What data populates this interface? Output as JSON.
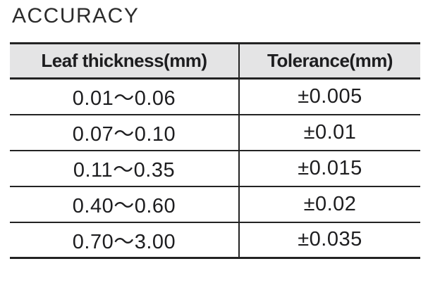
{
  "title": "ACCURACY",
  "table": {
    "headers": [
      "Leaf thickness(mm)",
      "Tolerance(mm)"
    ],
    "rows": [
      [
        "0.01〜0.06",
        "±0.005"
      ],
      [
        "0.07〜0.10",
        "±0.01"
      ],
      [
        "0.11〜0.35",
        "±0.015"
      ],
      [
        "0.40〜0.60",
        "±0.02"
      ],
      [
        "0.70〜3.00",
        "±0.035"
      ]
    ]
  },
  "chart_data": {
    "type": "table",
    "title": "ACCURACY",
    "columns": [
      "Leaf thickness(mm)",
      "Tolerance(mm)"
    ],
    "rows": [
      {
        "leaf_thickness_mm": "0.01〜0.06",
        "tolerance_mm": "±0.005"
      },
      {
        "leaf_thickness_mm": "0.07〜0.10",
        "tolerance_mm": "±0.01"
      },
      {
        "leaf_thickness_mm": "0.11〜0.35",
        "tolerance_mm": "±0.015"
      },
      {
        "leaf_thickness_mm": "0.40〜0.60",
        "tolerance_mm": "±0.02"
      },
      {
        "leaf_thickness_mm": "0.70〜3.00",
        "tolerance_mm": "±0.035"
      }
    ]
  },
  "colors": {
    "background": "#ffffff",
    "header_bg": "#e4e4e5",
    "border": "#232323",
    "text": "#1d1d1f",
    "title": "#2b2b2b"
  }
}
